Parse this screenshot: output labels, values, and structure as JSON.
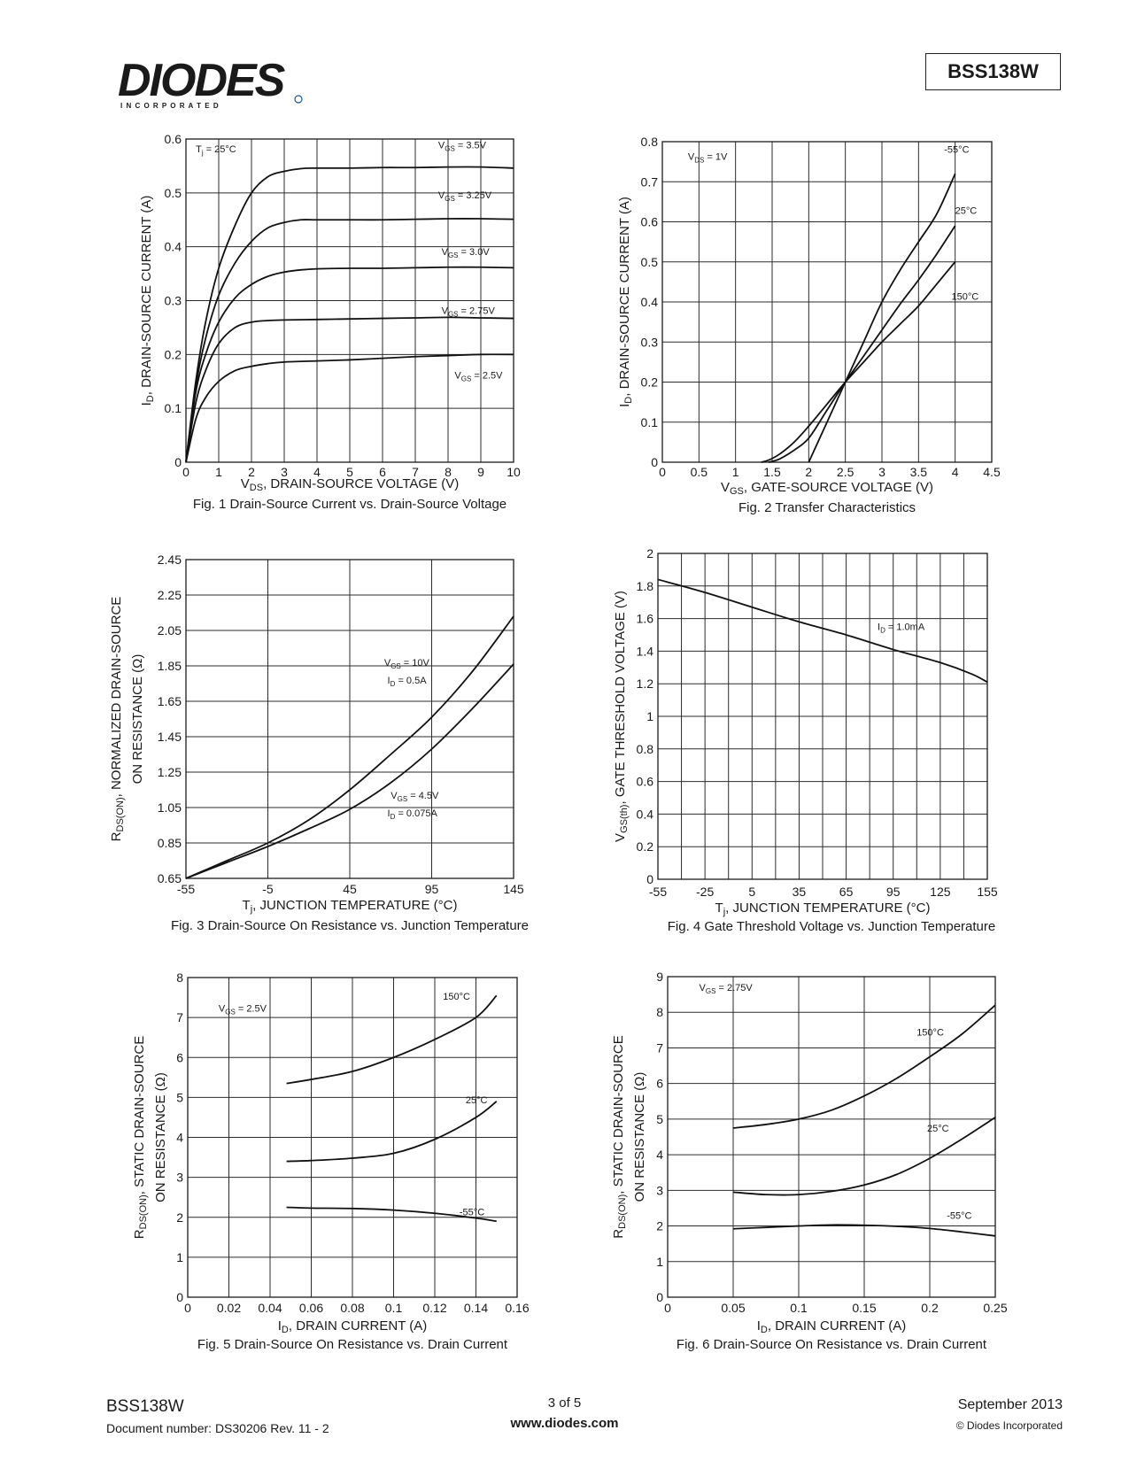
{
  "header": {
    "logo_text": "DIODES",
    "logo_sub": "I N C O R P O R A T E D",
    "part_number": "BSS138W",
    "logo_color": "#1a57a6"
  },
  "footer": {
    "part_number": "BSS138W",
    "document_number": "Document number: DS30206 Rev. 11 - 2",
    "page": "3 of 5",
    "website": "www.diodes.com",
    "date": "September 2013",
    "copyright": "© Diodes Incorporated"
  },
  "chart_data": [
    {
      "id": "fig1",
      "type": "line",
      "title": "Fig. 1  Drain-Source Current vs. Drain-Source Voltage",
      "xlabel": "V<sub>DS</sub>, DRAIN-SOURCE VOLTAGE (V)",
      "ylabel": "I<sub>D</sub>, DRAIN-SOURCE CURRENT (A)",
      "xlim": [
        0,
        10
      ],
      "ylim": [
        0,
        0.6
      ],
      "xticks": [
        0,
        1,
        2,
        3,
        4,
        5,
        6,
        7,
        8,
        9,
        10
      ],
      "xtick_labels": [
        "0",
        "1",
        "2",
        "3",
        "4",
        "5",
        "6",
        "7",
        "8",
        "9",
        "10"
      ],
      "yticks": [
        0,
        0.1,
        0.2,
        0.3,
        0.4,
        0.5,
        0.6
      ],
      "ytick_labels": [
        "0",
        "0.1",
        "0.2",
        "0.3",
        "0.4",
        "0.5",
        "0.6"
      ],
      "xgrid": [
        1,
        2,
        3,
        4,
        5,
        6,
        7,
        8,
        9
      ],
      "ygrid": [
        0.1,
        0.2,
        0.3,
        0.4,
        0.5
      ],
      "annotations": [
        {
          "text": "T<sub>j</sub> = 25°C",
          "x": 0.3,
          "y": 0.575
        },
        {
          "text": "V<sub>GS</sub> = 3.5V",
          "x": 7.7,
          "y": 0.583
        },
        {
          "text": "V<sub>GS</sub> = 3.25V",
          "x": 7.7,
          "y": 0.49
        },
        {
          "text": "V<sub>GS</sub> = 3.0V",
          "x": 7.8,
          "y": 0.385
        },
        {
          "text": "V<sub>GS</sub> = 2.75V",
          "x": 7.8,
          "y": 0.275
        },
        {
          "text": "V<sub>GS</sub> = 2.5V",
          "x": 8.2,
          "y": 0.155
        }
      ],
      "series": [
        {
          "name": "VGS = 3.5V",
          "x": [
            0,
            0.3,
            0.6,
            1,
            1.5,
            2,
            2.5,
            3,
            3.5,
            4,
            5,
            6,
            7,
            8,
            9,
            10
          ],
          "y": [
            0,
            0.15,
            0.26,
            0.36,
            0.44,
            0.5,
            0.53,
            0.54,
            0.545,
            0.546,
            0.546,
            0.547,
            0.547,
            0.548,
            0.548,
            0.546
          ]
        },
        {
          "name": "VGS = 3.25V",
          "x": [
            0,
            0.3,
            0.6,
            1,
            1.5,
            2,
            2.5,
            3,
            3.5,
            4,
            5,
            6,
            7,
            8,
            9,
            10
          ],
          "y": [
            0,
            0.14,
            0.23,
            0.31,
            0.37,
            0.41,
            0.435,
            0.445,
            0.45,
            0.45,
            0.45,
            0.45,
            0.451,
            0.452,
            0.452,
            0.451
          ]
        },
        {
          "name": "VGS = 3.0V",
          "x": [
            0,
            0.3,
            0.6,
            1,
            1.5,
            2,
            2.5,
            3,
            3.5,
            4,
            5,
            6,
            7,
            8,
            9,
            10
          ],
          "y": [
            0,
            0.13,
            0.2,
            0.26,
            0.305,
            0.33,
            0.345,
            0.353,
            0.357,
            0.359,
            0.36,
            0.36,
            0.361,
            0.362,
            0.362,
            0.361
          ]
        },
        {
          "name": "VGS = 2.75V",
          "x": [
            0,
            0.3,
            0.6,
            1,
            1.5,
            2,
            2.5,
            3,
            4,
            5,
            6,
            7,
            8,
            9,
            10
          ],
          "y": [
            0,
            0.11,
            0.17,
            0.22,
            0.25,
            0.26,
            0.263,
            0.264,
            0.265,
            0.266,
            0.267,
            0.268,
            0.269,
            0.268,
            0.267
          ]
        },
        {
          "name": "VGS = 2.5V",
          "x": [
            0,
            0.3,
            0.6,
            1,
            1.5,
            2,
            2.5,
            3,
            4,
            5,
            6,
            7,
            8,
            9,
            10
          ],
          "y": [
            0,
            0.08,
            0.12,
            0.15,
            0.17,
            0.178,
            0.183,
            0.186,
            0.188,
            0.19,
            0.193,
            0.196,
            0.198,
            0.2,
            0.2
          ]
        }
      ]
    },
    {
      "id": "fig2",
      "type": "line",
      "title": "Fig. 2  Transfer Characteristics",
      "xlabel": "V<sub>GS</sub>, GATE-SOURCE VOLTAGE (V)",
      "ylabel": "I<sub>D</sub>, DRAIN-SOURCE CURRENT (A)",
      "xlim": [
        0,
        4.5
      ],
      "ylim": [
        0,
        0.8
      ],
      "xticks": [
        0,
        0.5,
        1,
        1.5,
        2,
        2.5,
        3,
        3.5,
        4,
        4.5
      ],
      "xtick_labels": [
        "0",
        "0.5",
        "1",
        "1.5",
        "2",
        "2.5",
        "3",
        "3.5",
        "4",
        "4.5"
      ],
      "yticks": [
        0,
        0.1,
        0.2,
        0.3,
        0.4,
        0.5,
        0.6,
        0.7,
        0.8
      ],
      "ytick_labels": [
        "0",
        "0.1",
        "0.2",
        "0.3",
        "0.4",
        "0.5",
        "0.6",
        "0.7",
        "0.8"
      ],
      "xgrid": [
        0.5,
        1,
        1.5,
        2,
        2.5,
        3,
        3.5,
        4
      ],
      "ygrid": [
        0.1,
        0.2,
        0.3,
        0.4,
        0.5,
        0.6,
        0.7
      ],
      "annotations": [
        {
          "text": "V<sub>DS</sub> = 1V",
          "x": 0.35,
          "y": 0.755
        },
        {
          "text": "-55°C",
          "x": 3.85,
          "y": 0.772
        },
        {
          "text": "25°C",
          "x": 4.0,
          "y": 0.62
        },
        {
          "text": "150°C",
          "x": 3.95,
          "y": 0.405
        }
      ],
      "series": [
        {
          "name": "-55°C",
          "x": [
            2,
            2.25,
            2.5,
            2.75,
            3,
            3.25,
            3.5,
            3.75,
            4
          ],
          "y": [
            0,
            0.1,
            0.2,
            0.3,
            0.4,
            0.48,
            0.55,
            0.62,
            0.72
          ]
        },
        {
          "name": "25°C",
          "x": [
            1.45,
            1.6,
            1.8,
            2.0,
            2.25,
            2.5,
            2.75,
            3,
            3.25,
            3.5,
            3.75,
            4
          ],
          "y": [
            0,
            0.008,
            0.03,
            0.06,
            0.13,
            0.2,
            0.265,
            0.33,
            0.395,
            0.455,
            0.52,
            0.59
          ]
        },
        {
          "name": "150°C",
          "x": [
            1.35,
            1.45,
            1.6,
            1.8,
            2.0,
            2.25,
            2.5,
            2.75,
            3,
            3.25,
            3.5,
            3.75,
            4
          ],
          "y": [
            0,
            0.005,
            0.02,
            0.05,
            0.09,
            0.145,
            0.2,
            0.25,
            0.3,
            0.345,
            0.39,
            0.445,
            0.5
          ]
        }
      ]
    },
    {
      "id": "fig3",
      "type": "line",
      "title": "Fig. 3  Drain-Source On Resistance vs. Junction Temperature",
      "xlabel": "T<sub>j</sub>, JUNCTION TEMPERATURE (°C)",
      "ylabel": "R<sub>DS(ON)</sub>, NORMALIZED DRAIN-SOURCE",
      "ylabel2": "ON RESISTANCE (Ω)",
      "xlim": [
        -55,
        145
      ],
      "ylim": [
        0.65,
        2.45
      ],
      "xticks": [
        -55,
        -5,
        45,
        95,
        145
      ],
      "xtick_labels": [
        "-55",
        "-5",
        "45",
        "95",
        "145"
      ],
      "yticks": [
        0.65,
        0.85,
        1.05,
        1.25,
        1.45,
        1.65,
        1.85,
        2.05,
        2.25,
        2.45
      ],
      "ytick_labels": [
        "0.65",
        "0.85",
        "1.05",
        "1.25",
        "1.45",
        "1.65",
        "1.85",
        "2.05",
        "2.25",
        "2.45"
      ],
      "xgrid": [
        -5,
        45,
        95
      ],
      "ygrid": [
        0.85,
        1.05,
        1.25,
        1.45,
        1.65,
        1.85,
        2.05,
        2.25
      ],
      "annotations": [
        {
          "text": "V<sub>GS</sub> = 10V",
          "x": 66,
          "y": 1.85
        },
        {
          "text": "I<sub>D</sub> = 0.5A",
          "x": 68,
          "y": 1.75
        },
        {
          "text": "V<sub>GS</sub> = 4.5V",
          "x": 70,
          "y": 1.1
        },
        {
          "text": "I<sub>D</sub> = 0.075A",
          "x": 68,
          "y": 1.0
        }
      ],
      "series": [
        {
          "name": "VGS = 10V, ID = 0.5A",
          "x": [
            -55,
            -30,
            -5,
            20,
            45,
            70,
            95,
            120,
            145
          ],
          "y": [
            0.65,
            0.75,
            0.85,
            0.98,
            1.15,
            1.35,
            1.56,
            1.82,
            2.13
          ]
        },
        {
          "name": "VGS = 4.5V, ID = 0.075A",
          "x": [
            -55,
            -30,
            -5,
            20,
            45,
            70,
            95,
            120,
            145
          ],
          "y": [
            0.65,
            0.74,
            0.83,
            0.93,
            1.04,
            1.19,
            1.38,
            1.61,
            1.86
          ]
        }
      ]
    },
    {
      "id": "fig4",
      "type": "line",
      "title": "Fig. 4  Gate Threshold Voltage vs. Junction Temperature",
      "xlabel": "T<sub>j</sub>, JUNCTION TEMPERATURE (°C)",
      "ylabel": "V<sub>GS(th)</sub>, GATE THRESHOLD VOLTAGE (V)",
      "xlim": [
        -55,
        155
      ],
      "ylim": [
        0,
        2
      ],
      "xticks": [
        -55,
        -25,
        5,
        35,
        65,
        95,
        125,
        155
      ],
      "xtick_labels": [
        "-55",
        "-25",
        "5",
        "35",
        "65",
        "95",
        "125",
        "155"
      ],
      "yticks": [
        0,
        0.2,
        0.4,
        0.6,
        0.8,
        1,
        1.2,
        1.4,
        1.6,
        1.8,
        2
      ],
      "ytick_labels": [
        "0",
        "0.2",
        "0.4",
        "0.6",
        "0.8",
        "1",
        "1.2",
        "1.4",
        "1.6",
        "1.8",
        "2"
      ],
      "xgrid": [
        -40,
        -25,
        -10,
        5,
        20,
        35,
        50,
        65,
        80,
        95,
        110,
        125,
        140
      ],
      "ygrid": [
        0.2,
        0.4,
        0.6,
        0.8,
        1,
        1.2,
        1.4,
        1.6,
        1.8
      ],
      "annotations": [
        {
          "text": "I<sub>D</sub> = 1.0mA",
          "x": 85,
          "y": 1.53
        }
      ],
      "series": [
        {
          "name": "ID = 1.0mA",
          "x": [
            -55,
            -25,
            5,
            35,
            65,
            95,
            125,
            145,
            155
          ],
          "y": [
            1.84,
            1.76,
            1.67,
            1.58,
            1.5,
            1.41,
            1.33,
            1.26,
            1.21
          ]
        }
      ]
    },
    {
      "id": "fig5",
      "type": "line",
      "title": "Fig. 5  Drain-Source On Resistance vs. Drain Current",
      "xlabel": "I<sub>D</sub>, DRAIN CURRENT (A)",
      "ylabel": "R<sub>DS(ON)</sub>, STATIC DRAIN-SOURCE",
      "ylabel2": "ON RESISTANCE (Ω)",
      "xlim": [
        0,
        0.16
      ],
      "ylim": [
        0,
        8
      ],
      "xticks": [
        0,
        0.02,
        0.04,
        0.06,
        0.08,
        0.1,
        0.12,
        0.14,
        0.16
      ],
      "xtick_labels": [
        "0",
        "0.02",
        "0.04",
        "0.06",
        "0.08",
        "0.1",
        "0.12",
        "0.14",
        "0.16"
      ],
      "yticks": [
        0,
        1,
        2,
        3,
        4,
        5,
        6,
        7,
        8
      ],
      "ytick_labels": [
        "0",
        "1",
        "2",
        "3",
        "4",
        "5",
        "6",
        "7",
        "8"
      ],
      "xgrid": [
        0.02,
        0.04,
        0.06,
        0.08,
        0.1,
        0.12,
        0.14
      ],
      "ygrid": [
        1,
        2,
        3,
        4,
        5,
        6,
        7
      ],
      "annotations": [
        {
          "text": "V<sub>GS</sub> = 2.5V",
          "x": 0.015,
          "y": 7.15
        },
        {
          "text": "150°C",
          "x": 0.124,
          "y": 7.45
        },
        {
          "text": "25°C",
          "x": 0.135,
          "y": 4.85
        },
        {
          "text": "-55°C",
          "x": 0.132,
          "y": 2.05
        }
      ],
      "series": [
        {
          "name": "150°C",
          "x": [
            0.048,
            0.06,
            0.08,
            0.1,
            0.12,
            0.14,
            0.15
          ],
          "y": [
            5.35,
            5.45,
            5.65,
            6.0,
            6.45,
            7.0,
            7.55
          ]
        },
        {
          "name": "25°C",
          "x": [
            0.048,
            0.06,
            0.08,
            0.1,
            0.12,
            0.14,
            0.15
          ],
          "y": [
            3.4,
            3.42,
            3.48,
            3.6,
            3.95,
            4.5,
            4.9
          ]
        },
        {
          "name": "-55°C",
          "x": [
            0.048,
            0.06,
            0.08,
            0.1,
            0.12,
            0.14,
            0.15
          ],
          "y": [
            2.25,
            2.23,
            2.22,
            2.18,
            2.1,
            1.98,
            1.9
          ]
        }
      ]
    },
    {
      "id": "fig6",
      "type": "line",
      "title": "Fig. 6  Drain-Source On Resistance vs. Drain Current",
      "xlabel": "I<sub>D</sub>, DRAIN CURRENT (A)",
      "ylabel": "R<sub>DS(ON)</sub>, STATIC DRAIN-SOURCE",
      "ylabel2": "ON RESISTANCE (Ω)",
      "xlim": [
        0,
        0.25
      ],
      "ylim": [
        0,
        9
      ],
      "xticks": [
        0,
        0.05,
        0.1,
        0.15,
        0.2,
        0.25
      ],
      "xtick_labels": [
        "0",
        "0.05",
        "0.1",
        "0.15",
        "0.2",
        "0.25"
      ],
      "yticks": [
        0,
        1,
        2,
        3,
        4,
        5,
        6,
        7,
        8,
        9
      ],
      "ytick_labels": [
        "0",
        "1",
        "2",
        "3",
        "4",
        "5",
        "6",
        "7",
        "8",
        "9"
      ],
      "xgrid": [
        0.05,
        0.1,
        0.15,
        0.2
      ],
      "ygrid": [
        1,
        2,
        3,
        4,
        5,
        6,
        7,
        8
      ],
      "annotations": [
        {
          "text": "V<sub>GS</sub> = 2.75V",
          "x": 0.024,
          "y": 8.6
        },
        {
          "text": "150°C",
          "x": 0.19,
          "y": 7.35
        },
        {
          "text": "25°C",
          "x": 0.198,
          "y": 4.65
        },
        {
          "text": "-55°C",
          "x": 0.213,
          "y": 2.2
        }
      ],
      "series": [
        {
          "name": "150°C",
          "x": [
            0.05,
            0.075,
            0.1,
            0.125,
            0.15,
            0.175,
            0.2,
            0.225,
            0.25
          ],
          "y": [
            4.75,
            4.85,
            5.0,
            5.25,
            5.65,
            6.15,
            6.75,
            7.4,
            8.2
          ]
        },
        {
          "name": "25°C",
          "x": [
            0.05,
            0.075,
            0.1,
            0.125,
            0.15,
            0.175,
            0.2,
            0.225,
            0.25
          ],
          "y": [
            2.95,
            2.88,
            2.88,
            2.97,
            3.15,
            3.45,
            3.9,
            4.45,
            5.05
          ]
        },
        {
          "name": "-55°C",
          "x": [
            0.05,
            0.075,
            0.1,
            0.125,
            0.15,
            0.175,
            0.2,
            0.225,
            0.25
          ],
          "y": [
            1.92,
            1.96,
            2.0,
            2.03,
            2.02,
            1.99,
            1.93,
            1.83,
            1.72
          ]
        }
      ]
    }
  ]
}
